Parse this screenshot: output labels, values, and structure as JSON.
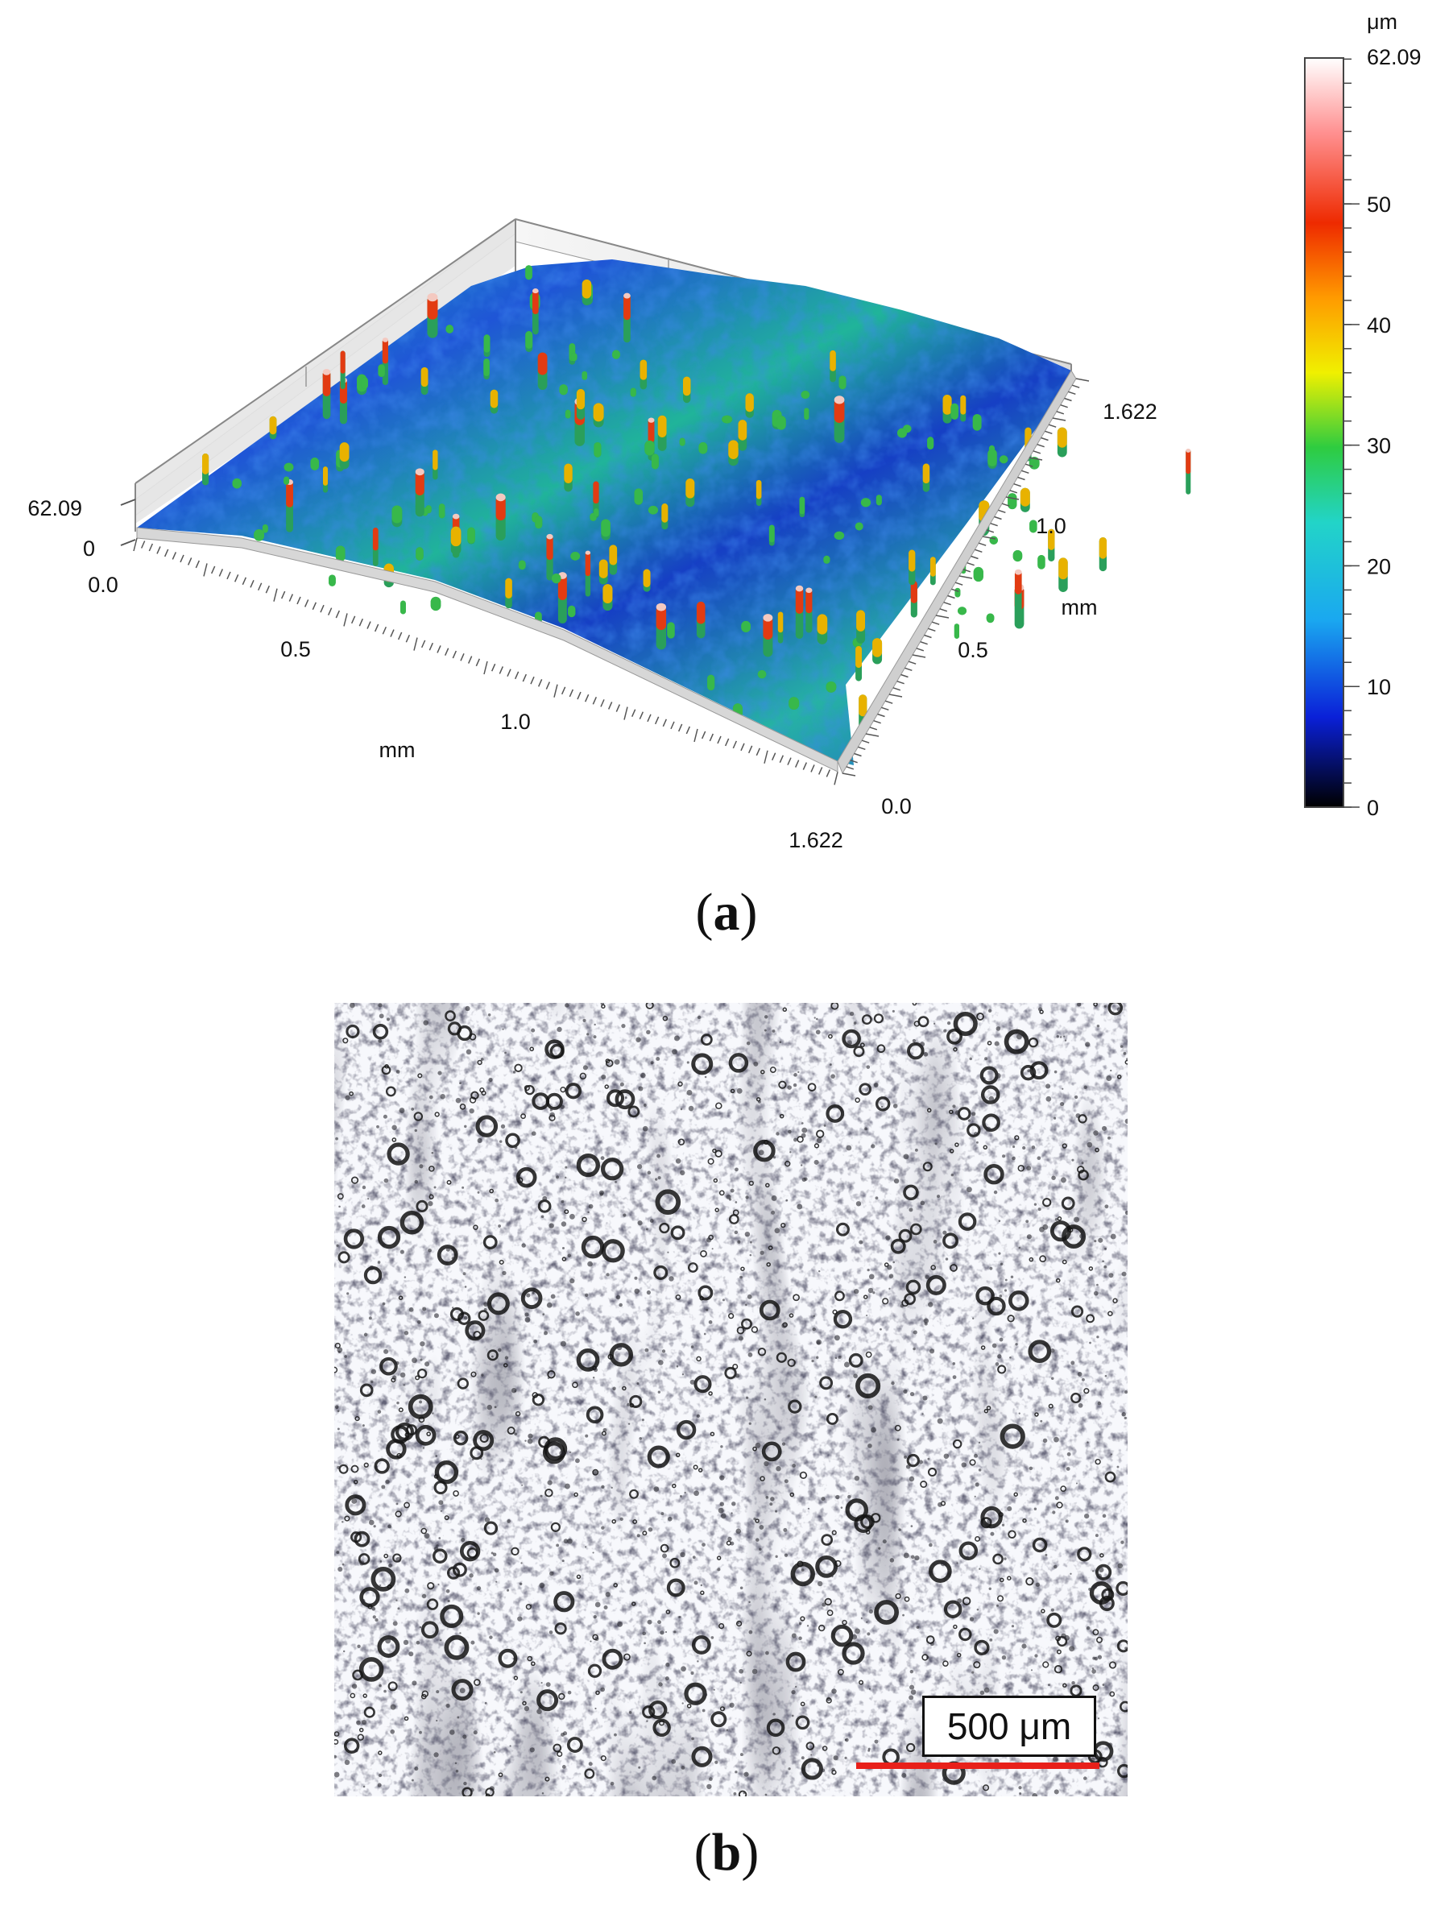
{
  "panel_a": {
    "label_letter": "a",
    "colorbar": {
      "unit": "μm",
      "max_label": "62.09",
      "ticks": [
        "50",
        "40",
        "30",
        "20",
        "10",
        "0"
      ],
      "tick_values": [
        50,
        40,
        30,
        20,
        10,
        0
      ],
      "max_value": 62.09,
      "colors": [
        "#000000",
        "#0a20d8",
        "#1aa8f0",
        "#22d4c8",
        "#2ecc40",
        "#f0f000",
        "#ff9a00",
        "#ee2a00",
        "#ff9090",
        "#ffffff"
      ]
    },
    "z_axis": {
      "max_label": "62.09",
      "min_label": "0"
    },
    "x_axis": {
      "label": "mm",
      "ticks": [
        "0.0",
        "0.5",
        "1.0",
        "1.622"
      ]
    },
    "y_axis": {
      "label": "mm",
      "ticks": [
        "0.0",
        "0.5",
        "1.0",
        "1.622"
      ]
    }
  },
  "panel_b": {
    "label_letter": "b",
    "scale_bar_label": "500 μm",
    "scale_bar_color": "#e8201a"
  }
}
